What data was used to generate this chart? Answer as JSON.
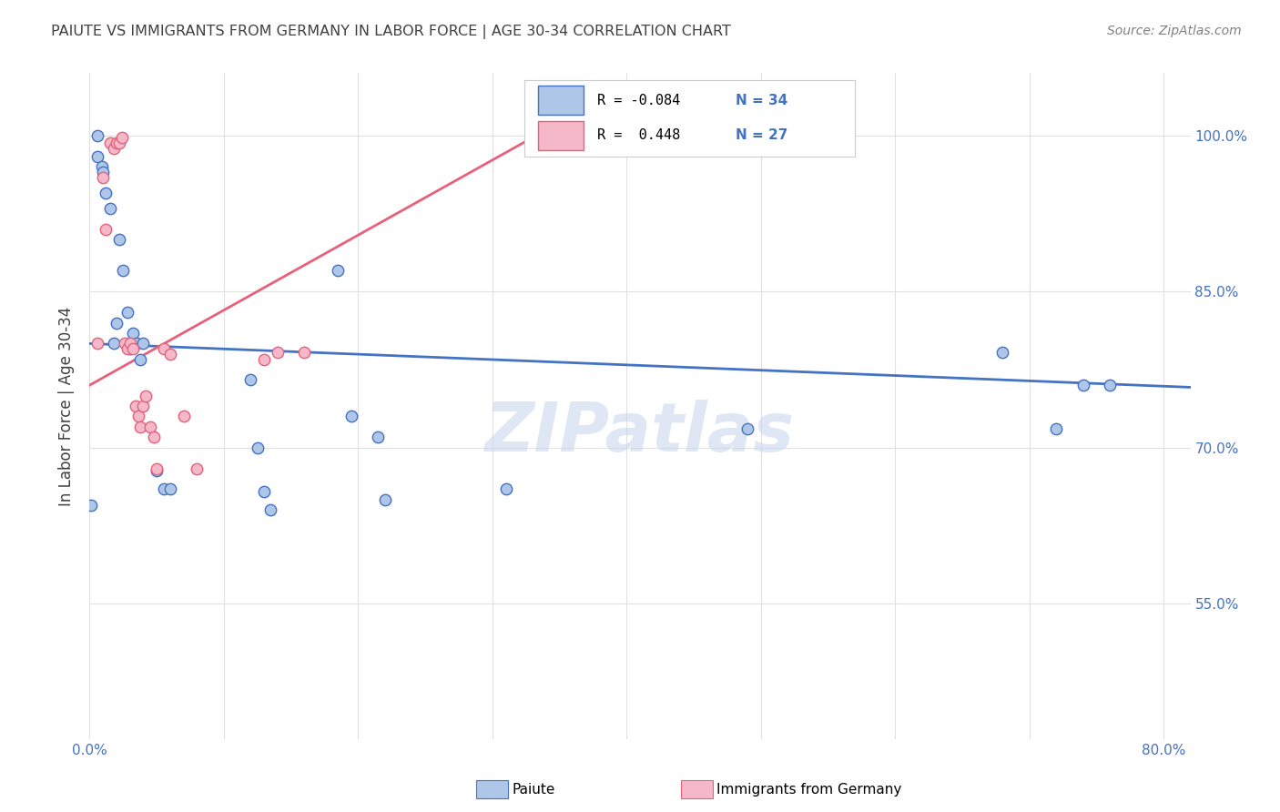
{
  "title": "PAIUTE VS IMMIGRANTS FROM GERMANY IN LABOR FORCE | AGE 30-34 CORRELATION CHART",
  "source": "Source: ZipAtlas.com",
  "ylabel": "In Labor Force | Age 30-34",
  "watermark": "ZIPatlas",
  "xlim": [
    0.0,
    0.82
  ],
  "ylim": [
    0.42,
    1.06
  ],
  "xtick_positions": [
    0.0,
    0.1,
    0.2,
    0.3,
    0.4,
    0.5,
    0.6,
    0.7,
    0.8
  ],
  "xticklabels": [
    "0.0%",
    "",
    "",
    "",
    "",
    "",
    "",
    "",
    "80.0%"
  ],
  "ytick_positions": [
    0.55,
    0.7,
    0.85,
    1.0
  ],
  "yticklabels": [
    "55.0%",
    "70.0%",
    "85.0%",
    "100.0%"
  ],
  "legend_labels": [
    "Paiute",
    "Immigrants from Germany"
  ],
  "legend_R": [
    "-0.084",
    "0.448"
  ],
  "legend_N": [
    "34",
    "27"
  ],
  "paiute_color": "#aec6e8",
  "germany_color": "#f4b8c8",
  "paiute_line_color": "#4472c4",
  "germany_line_color": "#e8607a",
  "grid_color": "#e0e0e0",
  "title_color": "#404040",
  "axis_label_color": "#404040",
  "right_tick_color": "#4472c4",
  "watermark_color": "#c8d8ec",
  "paiute_scatter_x": [
    0.001,
    0.006,
    0.006,
    0.009,
    0.01,
    0.012,
    0.015,
    0.018,
    0.02,
    0.022,
    0.025,
    0.028,
    0.03,
    0.032,
    0.035,
    0.038,
    0.04,
    0.05,
    0.055,
    0.06,
    0.12,
    0.125,
    0.13,
    0.135,
    0.185,
    0.195,
    0.215,
    0.22,
    0.31,
    0.49,
    0.68,
    0.72,
    0.74,
    0.76
  ],
  "paiute_scatter_y": [
    0.645,
    1.0,
    0.98,
    0.97,
    0.965,
    0.945,
    0.93,
    0.8,
    0.82,
    0.9,
    0.87,
    0.83,
    0.795,
    0.81,
    0.8,
    0.785,
    0.8,
    0.678,
    0.66,
    0.66,
    0.765,
    0.7,
    0.658,
    0.64,
    0.87,
    0.73,
    0.71,
    0.65,
    0.66,
    0.718,
    0.792,
    0.718,
    0.76,
    0.76
  ],
  "germany_scatter_x": [
    0.006,
    0.01,
    0.012,
    0.015,
    0.018,
    0.02,
    0.022,
    0.024,
    0.026,
    0.028,
    0.03,
    0.032,
    0.034,
    0.036,
    0.038,
    0.04,
    0.042,
    0.045,
    0.048,
    0.05,
    0.055,
    0.06,
    0.07,
    0.08,
    0.13,
    0.14,
    0.16
  ],
  "germany_scatter_y": [
    0.8,
    0.96,
    0.91,
    0.993,
    0.988,
    0.993,
    0.993,
    0.998,
    0.8,
    0.795,
    0.8,
    0.795,
    0.74,
    0.73,
    0.72,
    0.74,
    0.75,
    0.72,
    0.71,
    0.68,
    0.795,
    0.79,
    0.73,
    0.68,
    0.785,
    0.792,
    0.792
  ],
  "paiute_trendline_x": [
    0.0,
    0.82
  ],
  "paiute_trendline_y": [
    0.8,
    0.758
  ],
  "germany_trendline_x": [
    0.0,
    0.33
  ],
  "germany_trendline_y": [
    0.76,
    0.998
  ]
}
